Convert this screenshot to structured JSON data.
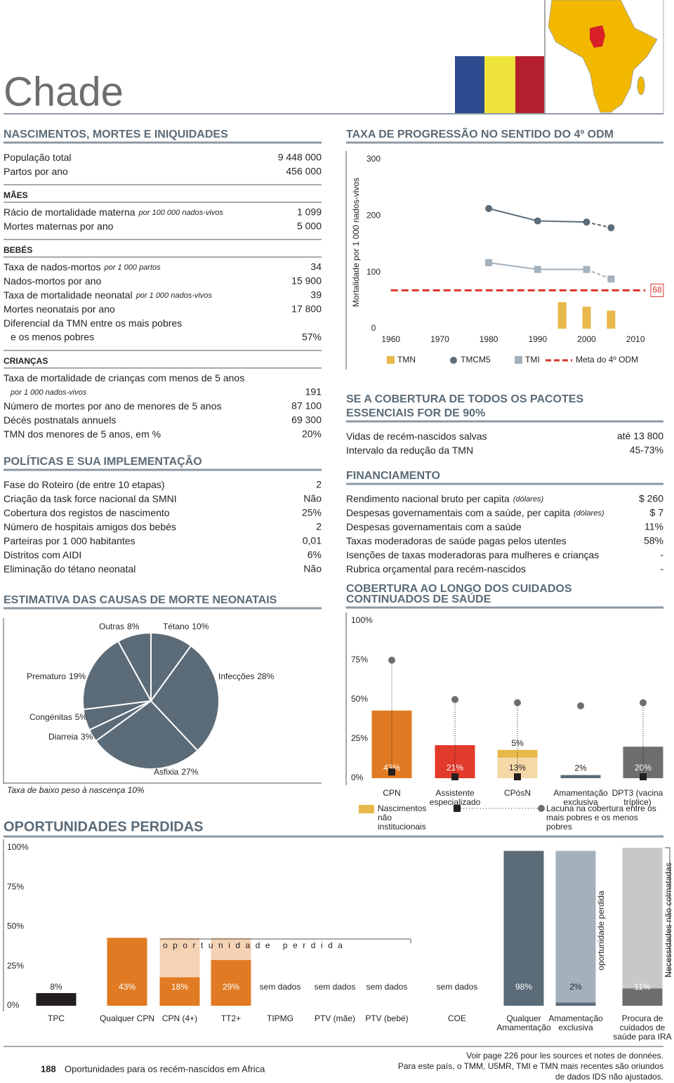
{
  "header": {
    "title": "Chade"
  },
  "left_blocks": [
    {
      "title": "NASCIMENTOS, MORTES E INIQUIDADES",
      "rows": [
        {
          "label": "População total",
          "value": "9 448 000"
        },
        {
          "label": "Partos por ano",
          "value": "456 000"
        }
      ]
    },
    {
      "subtitle": "MÃES",
      "rows": [
        {
          "label": "Rácio de mortalidade materna",
          "unit": "por 100 000 nados-vivos",
          "value": "1 099"
        },
        {
          "label": "Mortes maternas por ano",
          "value": "5 000"
        }
      ]
    },
    {
      "subtitle": "BEBÉS",
      "rows": [
        {
          "label": "Taxa de nados-mortos",
          "unit": "por 1 000 partos",
          "value": "34"
        },
        {
          "label": "Nados-mortos por ano",
          "value": "15 900"
        },
        {
          "label": "Taxa de mortalidade neonatal",
          "unit": "por 1 000 nados-vivos",
          "value": "39"
        },
        {
          "label": "Mortes neonatais por ano",
          "value": "17 800"
        },
        {
          "label": "Diferencial da TMN entre os mais pobres",
          "cont": "e os menos pobres",
          "value": "57%"
        }
      ]
    },
    {
      "subtitle": "CRIANÇAS",
      "rows": [
        {
          "label": "Taxa de mortalidade de crianças com menos de 5 anos",
          "cont_unit": "por 1 000 nados-vivos",
          "value": "191"
        },
        {
          "label": "Número de mortes por ano de menores de 5 anos",
          "value": "87 100"
        },
        {
          "label": "Décès postnatals annuels",
          "value": "69 300"
        },
        {
          "label": "TMN dos menores de 5 anos, em %",
          "value": "20%"
        }
      ]
    },
    {
      "title": "POLÍTICAS E SUA IMPLEMENTAÇÃO",
      "rows": [
        {
          "label": "Fase do Roteiro (de entre 10 etapas)",
          "value": "2"
        },
        {
          "label": "Criação da task force nacional da SMNI",
          "value": "Não"
        },
        {
          "label": "Cobertura dos registos de nascimento",
          "value": "25%"
        },
        {
          "label": "Número de hospitais amigos dos bebés",
          "value": "2"
        },
        {
          "label": "Parteiras por 1 000 habitantes",
          "value": "0,01"
        },
        {
          "label": "Distritos com AIDI",
          "value": "6%"
        },
        {
          "label": "Eliminação do tétano neonatal",
          "value": "Não"
        }
      ]
    }
  ],
  "right_blocks": [
    {
      "title": [
        "SE A COBERTURA DE TODOS OS PACOTES",
        "ESSENCIAIS FOR DE 90%"
      ],
      "rows": [
        {
          "label": "Vidas de recém-nascidos salvas",
          "value": "até 13 800"
        },
        {
          "label": "Intervalo da redução da TMN",
          "value": "45-73%"
        }
      ]
    },
    {
      "title": "FINANCIAMENTO",
      "rows": [
        {
          "label": "Rendimento nacional bruto per capita",
          "unit": "(dólares)",
          "value": "$ 260"
        },
        {
          "label": "Despesas governamentais com a saúde, per capita",
          "unit": "(dólares)",
          "value": "$ 7"
        },
        {
          "label": "Despesas governamentais com a saúde",
          "value": "11%"
        },
        {
          "label": "Taxas moderadoras de saúde pagas pelos utentes",
          "value": "58%"
        },
        {
          "label": "Isenções de taxas moderadoras para mulheres e crianças",
          "value": "-"
        },
        {
          "label": "Rubrica orçamental para recém-nascidos",
          "value": "-"
        }
      ]
    }
  ],
  "chart_data": [
    {
      "type": "line",
      "title": "TAXA DE PROGRESSÃO NO SENTIDO DO 4º ODM",
      "y_label": "Mortalidade por 1 000 nados-vivos",
      "xlim": [
        1951,
        2016
      ],
      "xticks": [
        1960,
        1970,
        1980,
        1990,
        2000,
        2010
      ],
      "ylim": [
        0,
        300
      ],
      "yticks": [
        0,
        100,
        200,
        300
      ],
      "series": [
        {
          "name": "TMN",
          "kind": "bar",
          "color": "#e8b84b",
          "x": [
            1995,
            2000,
            2005
          ],
          "values": [
            47,
            39,
            32
          ]
        },
        {
          "name": "TMCM5",
          "kind": "line",
          "marker": "circle",
          "color": "#5b6b77",
          "dashed_last": true,
          "x": [
            1980,
            1990,
            2000,
            2005
          ],
          "values": [
            213,
            191,
            189,
            179
          ]
        },
        {
          "name": "TMI",
          "kind": "line",
          "marker": "square",
          "color": "#a3b1bd",
          "dashed_last": true,
          "x": [
            1980,
            1990,
            2000,
            2005
          ],
          "values": [
            117,
            105,
            105,
            88
          ]
        },
        {
          "name": "Meta do 4º ODM",
          "kind": "goal",
          "color": "#d9342b",
          "x": [
            1960,
            2012
          ],
          "values": [
            68,
            68
          ]
        }
      ]
    },
    {
      "type": "pie",
      "title": "ESTIMATIVA DAS CAUSAS DE MORTE NEONATAIS",
      "categories": [
        "Tétano",
        "Infecções",
        "Asfixia",
        "Diarreia",
        "Congénitas",
        "Prematuro",
        "Outras"
      ],
      "values": [
        10,
        28,
        27,
        3,
        5,
        19,
        8
      ],
      "value_labels": [
        "10%",
        "28%",
        "27%",
        "3%",
        "5%",
        "19%",
        "8%"
      ],
      "color": "#5b6b77",
      "note": "Taxa de baixo peso à nascença 10%"
    },
    {
      "type": "bar",
      "title": [
        "COBERTURA AO LONGO DOS CUIDADOS",
        "CONTINUADOS DE SAÚDE"
      ],
      "categories": [
        "CPN",
        "Assistente especializado",
        "CPósN",
        "Amamentação exclusiva",
        "DPT3 (vacina tríplice)"
      ],
      "ylim": [
        0,
        100
      ],
      "yticks": [
        {
          "value": 0,
          "label": "0%"
        },
        {
          "value": 25,
          "label": "25%"
        },
        {
          "value": 50,
          "label": "50%"
        },
        {
          "value": 75,
          "label": "75%"
        },
        {
          "value": 100,
          "label": "100%"
        }
      ],
      "series": [
        {
          "values": [
            43,
            21,
            13,
            2,
            20
          ],
          "value_labels": [
            "43%",
            "21%",
            "13%",
            "2%",
            "20%"
          ],
          "colors": [
            "#e07b24",
            "#e23a2b",
            "#f5d9a8",
            "#5b6b77",
            "#6d6e70"
          ]
        },
        {
          "name": "Nascimentos não institucionais",
          "color": "#e8b84b",
          "values": [
            null,
            null,
            5,
            null,
            null
          ],
          "value_labels": [
            null,
            null,
            "5%",
            null,
            null
          ]
        }
      ],
      "gap": {
        "name": "Lacuna na cobertura entre os mais pobres e os menos pobres",
        "color": "#231f20",
        "low": [
          3,
          0,
          0,
          null,
          0
        ],
        "high": [
          75,
          50,
          48,
          46,
          48
        ]
      }
    },
    {
      "type": "bar",
      "title": "OPORTUNIDADES PERDIDAS",
      "categories": [
        "TPC",
        "Qualquer CPN",
        "CPN (4+)",
        "TT2+",
        "TIPMG",
        "PTV (mãe)",
        "PTV (bebé)",
        "COE",
        "Qualquer Amamentação",
        "Amamentação exclusiva",
        "Procura de cuidados de saúde para IRA"
      ],
      "ylim": [
        0,
        100
      ],
      "yticks": [
        {
          "value": 0,
          "label": "0%"
        },
        {
          "value": 25,
          "label": "25%"
        },
        {
          "value": 50,
          "label": "50%"
        },
        {
          "value": 75,
          "label": "75%"
        },
        {
          "value": 100,
          "label": "100%"
        }
      ],
      "series": [
        {
          "values": [
            8,
            43,
            18,
            29,
            null,
            null,
            null,
            null,
            98,
            2,
            11
          ],
          "value_labels": [
            "8%",
            "43%",
            "18%",
            "29%",
            "sem dados",
            "sem dados",
            "sem dados",
            "sem dados",
            "98%",
            "2%",
            "11%"
          ],
          "colors": [
            "#231f20",
            "#e07b24",
            "#e07b24",
            "#e07b24",
            null,
            null,
            null,
            null,
            "#5b6b77",
            "#5b6b77",
            "#6d6e70"
          ]
        },
        {
          "name": "oportunidade perdida",
          "color": "#f6d2b5",
          "values": [
            null,
            null,
            25,
            14,
            null,
            null,
            null,
            null,
            null,
            null,
            null
          ]
        },
        {
          "name": "oportunidade perdida",
          "color": "#a3b1bd",
          "values": [
            null,
            null,
            null,
            null,
            null,
            null,
            null,
            null,
            null,
            96,
            null
          ]
        },
        {
          "name": "Necessidades não colmatadas",
          "color": "#c6c8ca",
          "values": [
            null,
            null,
            null,
            null,
            null,
            null,
            null,
            null,
            null,
            null,
            89
          ]
        }
      ]
    }
  ],
  "footer": {
    "page_number": "188",
    "running_title": "Oportunidades para os recém-nascidos em Africa",
    "notes": [
      "Voir page 226 pour les sources et notes de données.",
      "Para este país, o TMM, U5MR, TMI e TMN mais recentes são oriundos",
      "de dados IDS não ajustados."
    ]
  }
}
